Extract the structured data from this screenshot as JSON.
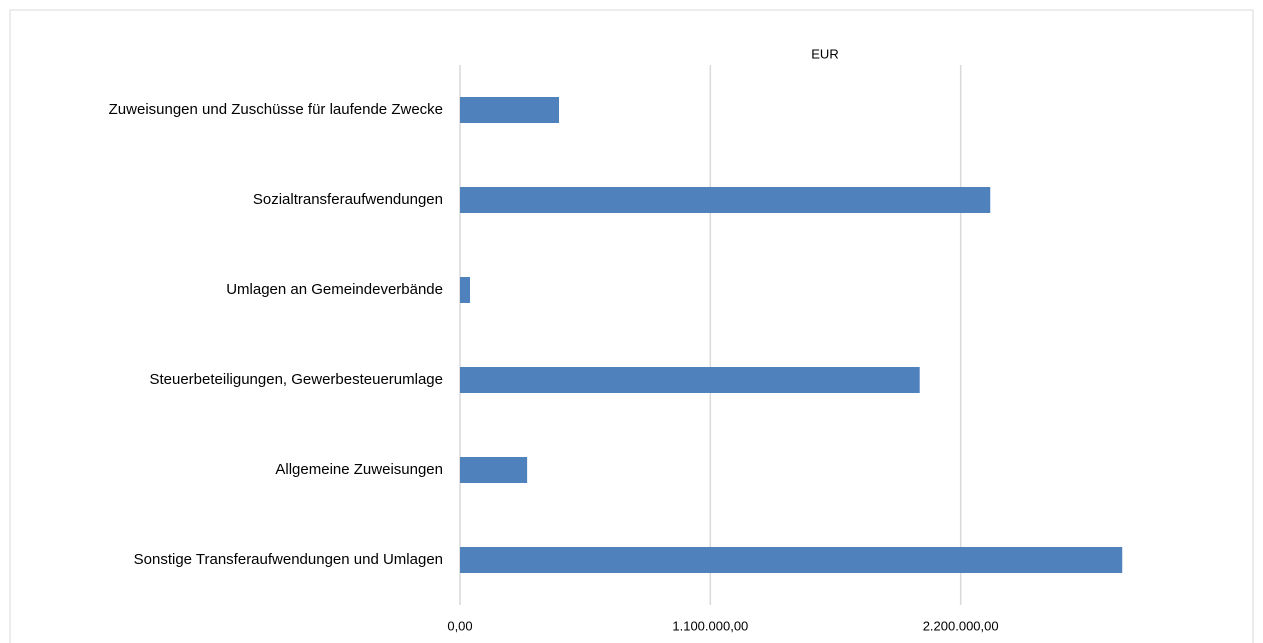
{
  "chart_data": {
    "type": "bar",
    "orientation": "horizontal",
    "x_label": "EUR",
    "categories": [
      "Zuweisungen und Zuschüsse für laufende Zwecke",
      "Sozialtransferaufwendungen",
      "Umlagen an Gemeindeverbände",
      "Steuerbeteiligungen, Gewerbesteuerumlage",
      "Allgemeine Zuweisungen",
      "Sonstige Transferaufwendungen und Umlagen"
    ],
    "values": [
      435000,
      2330000,
      44000,
      2020000,
      295000,
      2910000
    ],
    "color": "#4f81bd",
    "xlim": [
      0,
      3300000
    ],
    "xticks": [
      {
        "value": 0,
        "label": "0,00"
      },
      {
        "value": 1100000,
        "label": "1.100.000,00"
      },
      {
        "value": 2200000,
        "label": "2.200.000,00"
      }
    ],
    "grid": true
  }
}
